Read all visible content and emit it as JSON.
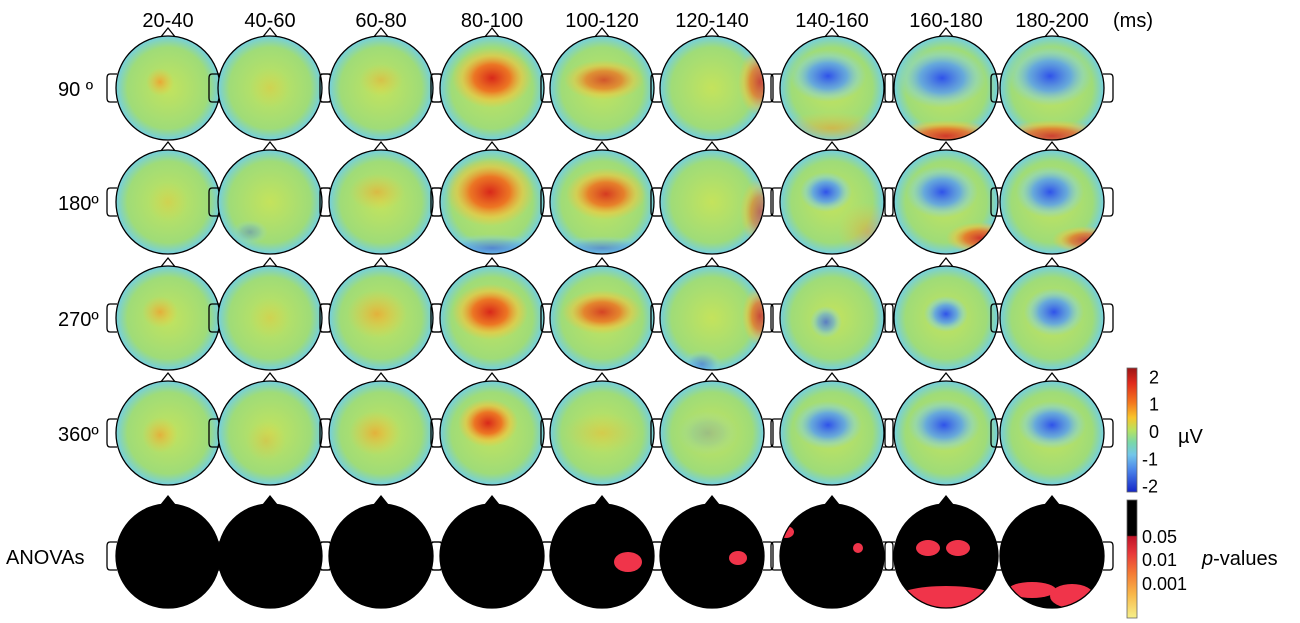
{
  "units_label": "(ms)",
  "time_windows": [
    "20-40",
    "40-60",
    "60-80",
    "80-100",
    "100-120",
    "120-140",
    "140-160",
    "160-180",
    "180-200"
  ],
  "conditions": [
    "90 º",
    "180º",
    "270º",
    "360º"
  ],
  "anova_label": "ANOVAs",
  "amplitude_colorbar": {
    "label": "µV",
    "ticks": [
      "2",
      "1",
      "0",
      "-1",
      "-2"
    ],
    "tick_values": [
      2,
      1,
      0,
      -1,
      -2
    ],
    "range": [
      -2.2,
      2.2
    ],
    "colors": [
      "#b01818",
      "#e8301c",
      "#f4721e",
      "#f7c62a",
      "#cfe256",
      "#7fdc7c",
      "#7ad0e2",
      "#5b9bea",
      "#3f5fe0",
      "#1c2bd2"
    ]
  },
  "pvalue_colorbar": {
    "label_italic": "p",
    "label_rest": "-values",
    "ticks": [
      "0.05",
      "0.01",
      "0.001"
    ],
    "colors": [
      "#000000",
      "#000000",
      "#d41a2e",
      "#ef4a3c",
      "#f6833a",
      "#f8c046",
      "#f6ef86"
    ]
  },
  "topo_colors": {
    "positive_strong": "#dc2a18",
    "positive": "#f4721e",
    "positive_weak": "#f7b63a",
    "baseline": "#b6e06a",
    "negative_weak": "#5aa8ec",
    "negative": "#3d6af0",
    "rim": "#7ed0dc",
    "anova_bg": "#000000",
    "anova_sig": "#f0344a"
  }
}
